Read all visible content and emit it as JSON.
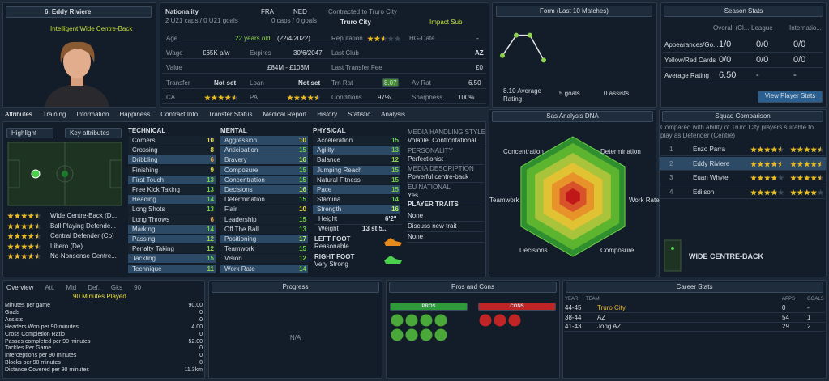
{
  "profile": {
    "name": "6. Eddy Riviere",
    "role": "Intelligent Wide Centre-Back"
  },
  "info": {
    "nationality_label": "Nationality",
    "nations": [
      "FRA",
      "NED"
    ],
    "caps": [
      "2 U21 caps / 0 U21 goals",
      "0 caps / 0 goals"
    ],
    "contract_label": "Contracted to Truro City",
    "club": "Truro City",
    "squad_status": "Impact Sub",
    "age_label": "Age",
    "age": "22 years old",
    "age_date": "(22/4/2022)",
    "wage_label": "Wage",
    "wage": "£65K p/w",
    "expires_label": "Expires",
    "expires": "30/6/2047",
    "value_label": "Value",
    "value": "£84M - £103M",
    "transfer_label": "Transfer",
    "transfer": "Not set",
    "loan_label": "Loan",
    "loan": "Not set",
    "ca_label": "CA",
    "ca_stars": 4.5,
    "pa_label": "PA",
    "pa_stars": 4.5,
    "reputation_label": "Reputation",
    "reputation_stars": 2.5,
    "hg_label": "HG-Date",
    "hg": "-",
    "last_club_label": "Last Club",
    "last_club": "AZ",
    "fee_label": "Last Transfer Fee",
    "fee": "£0",
    "trn_label": "Trn Rat",
    "trn": "8.07",
    "av_label": "Av Rat",
    "av": "6.50",
    "conditions_label": "Conditions",
    "conditions": "97%",
    "sharpness_label": "Sharpness",
    "sharpness": "100%"
  },
  "form": {
    "title": "Form (Last 10 Matches)",
    "ratings": [
      8.4,
      9.3,
      9.3,
      8.2
    ],
    "average": "8.10 Average Rating",
    "goals": "5 goals",
    "assists": "0 assists"
  },
  "season": {
    "title": "Season Stats",
    "columns": [
      "Overall (Cl...",
      "League",
      "Internatio..."
    ],
    "rows": [
      {
        "label": "Appearances/Go...",
        "values": [
          "1/0",
          "0/0",
          "0/0"
        ]
      },
      {
        "label": "Yellow/Red Cards",
        "values": [
          "0/0",
          "0/0",
          "0/0"
        ]
      },
      {
        "label": "Average Rating",
        "values": [
          "6.50",
          "-",
          "-"
        ]
      }
    ],
    "button": "View Player Stats"
  },
  "tabs": [
    "Attributes",
    "Training",
    "Information",
    "Happiness",
    "Contract Info",
    "Transfer Status",
    "Medical Report",
    "History",
    "Statistic",
    "Analysis"
  ],
  "attributes": {
    "highlight": "Highlight",
    "key_attributes": "Key attributes",
    "roles": [
      {
        "name": "Wide Centre-Back (D...",
        "stars": 4.5
      },
      {
        "name": "Ball Playing Defende...",
        "stars": 4.5
      },
      {
        "name": "Central Defender (Co)",
        "stars": 4.5
      },
      {
        "name": "Libero (De)",
        "stars": 4.5
      },
      {
        "name": "No-Nonsense Centre...",
        "stars": 4.5
      }
    ],
    "groups": [
      {
        "title": "TECHNICAL",
        "items": [
          {
            "name": "Corners",
            "value": 10
          },
          {
            "name": "Crossing",
            "value": 8
          },
          {
            "name": "Dribbling",
            "value": 6,
            "key": true
          },
          {
            "name": "Finishing",
            "value": 9
          },
          {
            "name": "First Touch",
            "value": 13,
            "key": true
          },
          {
            "name": "Free Kick Taking",
            "value": 13
          },
          {
            "name": "Heading",
            "value": 14,
            "key": true
          },
          {
            "name": "Long Shots",
            "value": 13
          },
          {
            "name": "Long Throws",
            "value": 6
          },
          {
            "name": "Marking",
            "value": 14,
            "key": true
          },
          {
            "name": "Passing",
            "value": 12,
            "key": true
          },
          {
            "name": "Penalty Taking",
            "value": 12
          },
          {
            "name": "Tackling",
            "value": 15,
            "key": true
          },
          {
            "name": "Technique",
            "value": 11,
            "key": true
          }
        ]
      },
      {
        "title": "MENTAL",
        "items": [
          {
            "name": "Aggression",
            "value": 10,
            "key": true
          },
          {
            "name": "Anticipation",
            "value": 15,
            "key": true
          },
          {
            "name": "Bravery",
            "value": 16,
            "key": true
          },
          {
            "name": "Composure",
            "value": 15,
            "key": true
          },
          {
            "name": "Concentration",
            "value": 15,
            "key": true
          },
          {
            "name": "Decisions",
            "value": 16,
            "key": true
          },
          {
            "name": "Determination",
            "value": 15
          },
          {
            "name": "Flair",
            "value": 10
          },
          {
            "name": "Leadership",
            "value": 15
          },
          {
            "name": "Off The Ball",
            "value": 13
          },
          {
            "name": "Positioning",
            "value": 17,
            "key": true
          },
          {
            "name": "Teamwork",
            "value": 15
          },
          {
            "name": "Vision",
            "value": 12
          },
          {
            "name": "Work Rate",
            "value": 14,
            "key": true
          }
        ]
      },
      {
        "title": "PHYSICAL",
        "items": [
          {
            "name": "Acceleration",
            "value": 15
          },
          {
            "name": "Agility",
            "value": 13,
            "key": true
          },
          {
            "name": "Balance",
            "value": 12
          },
          {
            "name": "Jumping Reach",
            "value": 15,
            "key": true
          },
          {
            "name": "Natural Fitness",
            "value": 15
          },
          {
            "name": "Pace",
            "value": 15,
            "key": true
          },
          {
            "name": "Stamina",
            "value": 14
          },
          {
            "name": "Strength",
            "value": 16,
            "key": true
          }
        ]
      }
    ],
    "height_label": "Height",
    "height": "6'2\"",
    "weight_label": "Weight",
    "weight": "13 st 5...",
    "left_foot_label": "LEFT FOOT",
    "left_foot": "Reasonable",
    "right_foot_label": "RIGHT FOOT",
    "right_foot": "Very Strong",
    "media": [
      {
        "label": "MEDIA HANDLING STYLE",
        "value": "Volatile, Confrontational"
      },
      {
        "label": "PERSONALITY",
        "value": "Perfectionist"
      },
      {
        "label": "MEDIA DESCRIPTION",
        "value": "Powerful centre-back"
      },
      {
        "label": "EU NATIONAL",
        "value": "Yes"
      }
    ],
    "traits_label": "PLAYER TRAITS",
    "traits": [
      "None",
      "Discuss new trait",
      "None"
    ]
  },
  "dna": {
    "title": "Sas Analysis DNA",
    "axes": [
      "Concentration",
      "Determination",
      "Work Rate",
      "Composure",
      "Decisions",
      "Teamwork"
    ]
  },
  "squad": {
    "title": "Squad Comparison",
    "note": "Compared with ability of Truro City players suitable to play as Defender (Centre)",
    "players": [
      {
        "rank": 1,
        "name": "Enzo Parra",
        "current": 4.5,
        "potential": 4.5
      },
      {
        "rank": 2,
        "name": "Eddy Riviere",
        "current": 4.5,
        "potential": 4.5
      },
      {
        "rank": 3,
        "name": "Euan Whyte",
        "current": 4,
        "potential": 4.5
      },
      {
        "rank": 4,
        "name": "Edilson",
        "current": 4,
        "potential": 4
      }
    ],
    "position": "WIDE CENTRE-BACK"
  },
  "overview": {
    "tabs": [
      "Overview",
      "Att.",
      "Mid",
      "Def.",
      "Gks",
      "90"
    ],
    "minutes": "90 Minutes Played",
    "stats": [
      {
        "label": "Minutes per game",
        "value": "90.00"
      },
      {
        "label": "Goals",
        "value": "0"
      },
      {
        "label": "Assists",
        "value": "0"
      },
      {
        "label": "Headers Won per 90 minutes",
        "value": "4.00"
      },
      {
        "label": "Cross Completion Ratio",
        "value": "0"
      },
      {
        "label": "Passes completed per 90 minutes",
        "value": "52.00"
      },
      {
        "label": "Tackles Per Game",
        "value": "0"
      },
      {
        "label": "Interceptions per 90 minutes",
        "value": "0"
      },
      {
        "label": "Blocks per 90 minutes",
        "value": "0"
      },
      {
        "label": "Distance Covered per 90 minutes",
        "value": "11.3km"
      }
    ]
  },
  "progress": {
    "title": "Progress",
    "empty": "N/A"
  },
  "pros_cons": {
    "title": "Pros and Cons",
    "pros_label": "PROS",
    "cons_label": "CONS"
  },
  "career": {
    "title": "Career Stats",
    "columns": [
      "YEAR",
      "TEAM",
      "APPS",
      "GOALS"
    ],
    "rows": [
      [
        "44-45",
        "Truro City",
        "0",
        "-"
      ],
      [
        "38-44",
        "AZ",
        "54",
        "1"
      ],
      [
        "41-43",
        "Jong AZ",
        "29",
        "2"
      ]
    ]
  }
}
